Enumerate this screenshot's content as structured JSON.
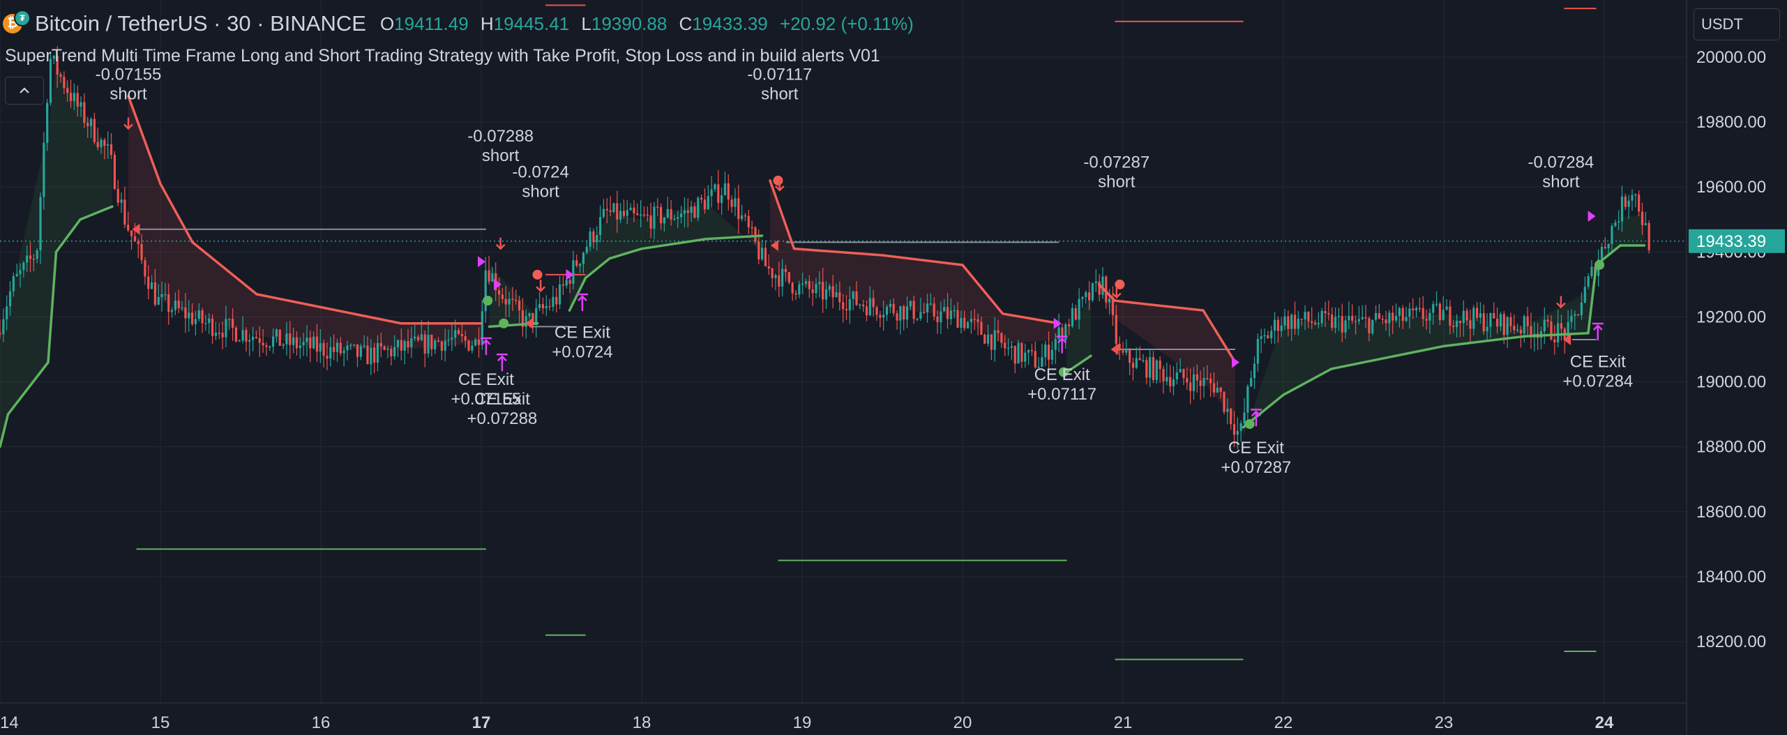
{
  "header": {
    "symbol": "Bitcoin / TetherUS · 30 · BINANCE",
    "coin_glyph": "₿",
    "o_label": "O",
    "o_value": "19411.49",
    "h_label": "H",
    "h_value": "19445.41",
    "l_label": "L",
    "l_value": "19390.88",
    "c_label": "C",
    "c_value": "19433.39",
    "change": "+20.92 (+0.11%)",
    "strategy": "SuperTrend Multi Time Frame Long and Short Trading Strategy with Take Profit, Stop Loss and in build alerts V01",
    "collapse_icon": "chevron-up-icon",
    "currency": "USDT"
  },
  "colors": {
    "background": "#161a25",
    "grid": "#242833",
    "up": "#26a69a",
    "down": "#ef5350",
    "trend_up": "#5fb35f",
    "trend_down": "#ef5f57",
    "marker": "#e040fb",
    "text": "#d1d4dc"
  },
  "chart_data": {
    "type": "candlestick",
    "symbol": "Bitcoin / TetherUS",
    "interval": "30",
    "exchange": "BINANCE",
    "x_ticks": [
      "14",
      "15",
      "16",
      "17",
      "18",
      "19",
      "20",
      "21",
      "22",
      "23",
      "24"
    ],
    "bold_x_ticks": [
      "17",
      "24"
    ],
    "y_ticks": [
      18200,
      18400,
      18600,
      18800,
      19000,
      19200,
      19400,
      19600,
      19800,
      20000
    ],
    "y_tick_labels": [
      "18200.00",
      "18400.00",
      "18600.00",
      "18800.00",
      "19000.00",
      "19200.00",
      "19400.00",
      "19600.00",
      "19800.00",
      "20000.00"
    ],
    "ylim": [
      18020,
      20150
    ],
    "xlim": [
      14.0,
      24.52
    ],
    "last_price": 19433.39,
    "last_price_label": "19433.39",
    "supertrend_anchors": [
      [
        14.0,
        "up",
        18800
      ],
      [
        14.05,
        "up",
        18900
      ],
      [
        14.3,
        "up",
        19060
      ],
      [
        14.35,
        "up",
        19400
      ],
      [
        14.5,
        "up",
        19500
      ],
      [
        14.7,
        "up",
        19540
      ],
      [
        14.8,
        "down",
        19880
      ],
      [
        15.0,
        "down",
        19610
      ],
      [
        15.2,
        "down",
        19430
      ],
      [
        15.6,
        "down",
        19270
      ],
      [
        16.0,
        "down",
        19230
      ],
      [
        16.5,
        "down",
        19180
      ],
      [
        17.0,
        "down",
        19180
      ],
      [
        17.05,
        "up",
        19170
      ],
      [
        17.35,
        "up",
        19180
      ],
      [
        17.45,
        "down",
        19300
      ],
      [
        17.55,
        "up",
        19220
      ],
      [
        17.65,
        "up",
        19320
      ],
      [
        17.8,
        "up",
        19380
      ],
      [
        18.0,
        "up",
        19410
      ],
      [
        18.4,
        "up",
        19440
      ],
      [
        18.75,
        "up",
        19450
      ],
      [
        18.8,
        "down",
        19620
      ],
      [
        18.95,
        "down",
        19410
      ],
      [
        19.5,
        "down",
        19390
      ],
      [
        20.0,
        "down",
        19360
      ],
      [
        20.25,
        "down",
        19210
      ],
      [
        20.6,
        "down",
        19180
      ],
      [
        20.65,
        "up",
        19030
      ],
      [
        20.8,
        "up",
        19080
      ],
      [
        20.85,
        "down",
        19300
      ],
      [
        20.95,
        "down",
        19250
      ],
      [
        21.5,
        "down",
        19220
      ],
      [
        21.7,
        "down",
        19060
      ],
      [
        21.75,
        "up",
        18860
      ],
      [
        22.0,
        "up",
        18960
      ],
      [
        22.3,
        "up",
        19040
      ],
      [
        22.6,
        "up",
        19070
      ],
      [
        23.0,
        "up",
        19110
      ],
      [
        23.5,
        "up",
        19140
      ],
      [
        23.9,
        "up",
        19150
      ],
      [
        23.95,
        "up",
        19360
      ],
      [
        24.1,
        "up",
        19420
      ],
      [
        24.25,
        "up",
        19420
      ]
    ],
    "price_anchors": [
      [
        14.0,
        19150
      ],
      [
        14.1,
        19300
      ],
      [
        14.25,
        19400
      ],
      [
        14.33,
        20000
      ],
      [
        14.5,
        19850
      ],
      [
        14.7,
        19700
      ],
      [
        14.8,
        19500
      ],
      [
        15.0,
        19250
      ],
      [
        15.3,
        19180
      ],
      [
        15.8,
        19120
      ],
      [
        16.3,
        19080
      ],
      [
        16.8,
        19130
      ],
      [
        17.0,
        19120
      ],
      [
        17.05,
        19360
      ],
      [
        17.15,
        19270
      ],
      [
        17.3,
        19180
      ],
      [
        17.5,
        19260
      ],
      [
        17.65,
        19400
      ],
      [
        17.8,
        19520
      ],
      [
        18.0,
        19500
      ],
      [
        18.3,
        19520
      ],
      [
        18.55,
        19600
      ],
      [
        18.8,
        19350
      ],
      [
        19.0,
        19290
      ],
      [
        19.5,
        19230
      ],
      [
        20.0,
        19200
      ],
      [
        20.3,
        19100
      ],
      [
        20.5,
        19060
      ],
      [
        20.7,
        19200
      ],
      [
        20.9,
        19310
      ],
      [
        21.0,
        19080
      ],
      [
        21.3,
        19020
      ],
      [
        21.6,
        18990
      ],
      [
        21.75,
        18830
      ],
      [
        21.85,
        19100
      ],
      [
        22.0,
        19190
      ],
      [
        22.5,
        19180
      ],
      [
        23.0,
        19210
      ],
      [
        23.5,
        19170
      ],
      [
        23.8,
        19150
      ],
      [
        23.98,
        19380
      ],
      [
        24.15,
        19560
      ],
      [
        24.2,
        19600
      ],
      [
        24.3,
        19433
      ]
    ],
    "entry_levels": [
      {
        "x1": 14.85,
        "x2": 17.03,
        "y": 19470,
        "color": "gray"
      },
      {
        "x1": 18.9,
        "x2": 20.6,
        "y": 19430,
        "color": "gray"
      },
      {
        "x1": 20.95,
        "x2": 21.7,
        "y": 19100,
        "color": "gray"
      },
      {
        "x1": 23.8,
        "x2": 23.95,
        "y": 19130,
        "color": "gray"
      },
      {
        "x1": 17.3,
        "x2": 17.55,
        "y": 19170,
        "color": "gray"
      }
    ],
    "stop_levels": [
      {
        "x1": 20.95,
        "x2": 21.75,
        "y": 20110,
        "color": "red"
      },
      {
        "x1": 17.4,
        "x2": 17.65,
        "y": 20160,
        "color": "red"
      },
      {
        "x1": 23.75,
        "x2": 23.95,
        "y": 20150,
        "color": "red"
      },
      {
        "x1": 17.4,
        "x2": 17.65,
        "y": 19330,
        "color": "red"
      }
    ],
    "target_levels": [
      {
        "x1": 14.85,
        "x2": 17.03,
        "y": 18485,
        "color": "green"
      },
      {
        "x1": 18.85,
        "x2": 20.65,
        "y": 18450,
        "color": "green"
      },
      {
        "x1": 17.4,
        "x2": 17.65,
        "y": 18220,
        "color": "green"
      },
      {
        "x1": 20.95,
        "x2": 21.75,
        "y": 18145,
        "color": "green"
      },
      {
        "x1": 23.75,
        "x2": 23.95,
        "y": 18170,
        "color": "green"
      }
    ],
    "annotations": [
      {
        "text": [
          "-0.07155",
          "short"
        ],
        "x": 14.8,
        "y": 19930,
        "arrow": "down-red",
        "ay": 19780
      },
      {
        "text": [
          "-0.07288",
          "short"
        ],
        "x": 17.12,
        "y": 19740,
        "arrow": "down-red",
        "ay": 19410
      },
      {
        "text": [
          "-0.0724",
          "short"
        ],
        "x": 17.37,
        "y": 19630,
        "arrow": "down-red",
        "ay": 19280
      },
      {
        "text": [
          "-0.07117",
          "short"
        ],
        "x": 18.86,
        "y": 19930,
        "arrow": "down-red",
        "ay": 19590
      },
      {
        "text": [
          "-0.07287",
          "short"
        ],
        "x": 20.96,
        "y": 19660,
        "arrow": "down-red",
        "ay": 19260
      },
      {
        "text": [
          "-0.07284",
          "short"
        ],
        "x": 23.73,
        "y": 19660,
        "arrow": "down-red",
        "ay": 19230
      },
      {
        "text": [
          "CE Exit",
          "+0.07155"
        ],
        "x": 17.03,
        "y": 18990,
        "arrow": "up-magenta",
        "ay": 19100
      },
      {
        "text": [
          "CE Exit",
          "+0.07288"
        ],
        "x": 17.13,
        "y": 18930,
        "arrow": "up-magenta",
        "ay": 19050
      },
      {
        "text": [
          "CE Exit",
          "+0.0724"
        ],
        "x": 17.63,
        "y": 19135,
        "arrow": "up-magenta",
        "ay": 19235
      },
      {
        "text": [
          "CE Exit",
          "+0.07117"
        ],
        "x": 20.62,
        "y": 19005,
        "arrow": "up-magenta",
        "ay": 19105
      },
      {
        "text": [
          "CE Exit",
          "+0.07287"
        ],
        "x": 21.83,
        "y": 18780,
        "arrow": "up-magenta",
        "ay": 18880
      },
      {
        "text": [
          "CE Exit",
          "+0.07284"
        ],
        "x": 23.96,
        "y": 19045,
        "arrow": "up-magenta",
        "ay": 19145
      }
    ],
    "entry_dots": [
      [
        17.04,
        19250,
        "up"
      ],
      [
        17.14,
        19180,
        "up"
      ],
      [
        17.35,
        19330,
        "down"
      ],
      [
        18.85,
        19620,
        "down"
      ],
      [
        20.63,
        19030,
        "up"
      ],
      [
        20.98,
        19300,
        "down"
      ],
      [
        21.79,
        18870,
        "up"
      ],
      [
        23.97,
        19360,
        "up"
      ]
    ],
    "side_markers": [
      [
        14.85,
        19470,
        "left-red"
      ],
      [
        17.0,
        19370,
        "right-magenta"
      ],
      [
        17.1,
        19300,
        "right-magenta"
      ],
      [
        17.3,
        19180,
        "left-red"
      ],
      [
        17.55,
        19330,
        "right-magenta"
      ],
      [
        18.83,
        19420,
        "left-red"
      ],
      [
        20.59,
        19180,
        "right-magenta"
      ],
      [
        20.95,
        19100,
        "left-red"
      ],
      [
        21.7,
        19060,
        "right-magenta"
      ],
      [
        23.77,
        19130,
        "left-red"
      ],
      [
        23.92,
        19510,
        "right-magenta"
      ]
    ]
  }
}
